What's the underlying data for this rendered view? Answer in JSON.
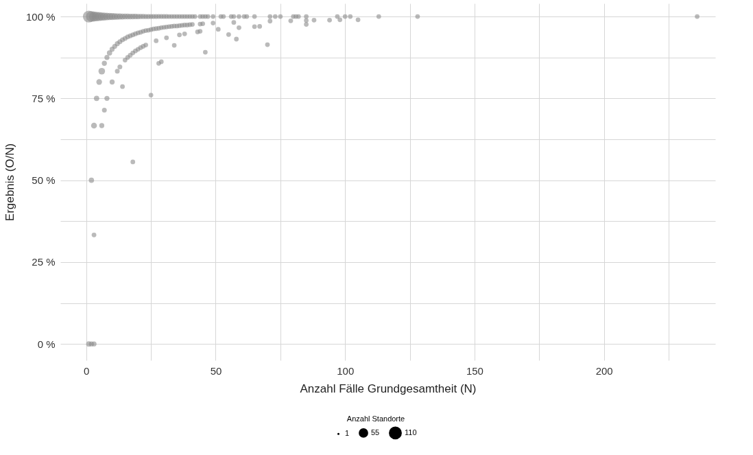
{
  "chart_data": {
    "type": "bubble",
    "xlabel": "Anzahl Fälle Grundgesamtheit (N)",
    "ylabel": "Ergebnis (O/N)",
    "legend_title": "Anzahl Standorte",
    "grid": true,
    "xlim": [
      -10,
      243
    ],
    "ylim": [
      -5,
      104
    ],
    "xticks": [
      0,
      {
        "value": 25,
        "label": null
      },
      50,
      {
        "value": 75,
        "label": null
      },
      100,
      {
        "value": 125,
        "label": null
      },
      150,
      {
        "value": 175,
        "label": null
      },
      200,
      {
        "value": 225,
        "label": null
      }
    ],
    "yticks": [
      {
        "value": 0,
        "label": "0 %"
      },
      {
        "value": 12.5,
        "label": null
      },
      {
        "value": 25,
        "label": "25 %"
      },
      {
        "value": 37.5,
        "label": null
      },
      {
        "value": 50,
        "label": "50 %"
      },
      {
        "value": 62.5,
        "label": null
      },
      {
        "value": 75,
        "label": "75 %"
      },
      {
        "value": 87.5,
        "label": null
      },
      {
        "value": 100,
        "label": "100 %"
      }
    ],
    "size_legend": [
      1,
      55,
      110
    ],
    "series": [
      {
        "color": "#8c8c8c",
        "x": [
          1,
          2,
          3,
          4,
          5,
          6,
          7,
          8,
          9,
          10,
          11,
          12,
          13,
          14,
          15,
          16,
          17,
          18,
          19,
          20,
          21,
          22,
          23,
          24,
          25,
          26,
          27,
          28,
          29,
          30,
          31,
          32,
          33,
          34,
          35,
          36,
          37,
          38,
          39,
          40,
          41,
          42,
          44,
          45,
          46,
          47,
          49,
          52,
          53,
          56,
          57,
          59,
          61,
          62,
          65,
          71,
          73,
          75,
          80,
          81,
          82,
          85,
          97,
          100,
          102,
          113,
          128,
          236
        ],
        "values": [
          100,
          100,
          100,
          100,
          100,
          100,
          100,
          100,
          100,
          100,
          100,
          100,
          100,
          100,
          100,
          100,
          100,
          100,
          100,
          100,
          100,
          100,
          100,
          100,
          100,
          100,
          100,
          100,
          100,
          100,
          100,
          100,
          100,
          100,
          100,
          100,
          100,
          100,
          100,
          100,
          100,
          100,
          100,
          100,
          100,
          100,
          100,
          100,
          100,
          100,
          100,
          100,
          100,
          100,
          100,
          100,
          100,
          100,
          100,
          100,
          100,
          100,
          100,
          100,
          100,
          100,
          100,
          100
        ],
        "sizes": [
          110,
          90,
          78,
          70,
          62,
          56,
          50,
          45,
          41,
          38,
          35,
          32,
          30,
          28,
          27,
          26,
          25,
          24,
          23,
          22,
          21,
          21,
          20,
          20,
          19,
          19,
          19,
          18,
          18,
          18,
          18,
          17,
          17,
          17,
          17,
          17,
          17,
          17,
          17,
          17,
          17,
          17,
          17,
          17,
          17,
          17,
          17,
          17,
          17,
          17,
          17,
          17,
          17,
          17,
          17,
          17,
          17,
          17,
          17,
          17,
          17,
          17,
          17,
          17,
          17,
          17,
          17,
          17
        ]
      },
      {
        "color": "#8c8c8c",
        "x": [
          2,
          3,
          4,
          5,
          6,
          7,
          8,
          9,
          10,
          11,
          12,
          13,
          14,
          15,
          16,
          17,
          18,
          19,
          20,
          21,
          22,
          23,
          24,
          25,
          26,
          27,
          28,
          29,
          30,
          31,
          32,
          33,
          34,
          35,
          36,
          37,
          38,
          39,
          40,
          41,
          44,
          45,
          49,
          57,
          71,
          79,
          85,
          88,
          94,
          98,
          105
        ],
        "values": [
          50,
          66.7,
          75,
          80,
          83.3,
          85.7,
          87.5,
          88.9,
          90,
          90.9,
          91.7,
          92.3,
          92.9,
          93.3,
          93.8,
          94.1,
          94.4,
          94.7,
          95,
          95.2,
          95.5,
          95.7,
          95.8,
          96,
          96.2,
          96.3,
          96.4,
          96.6,
          96.7,
          96.8,
          96.9,
          97,
          97.1,
          97.1,
          97.2,
          97.3,
          97.4,
          97.4,
          97.5,
          97.6,
          97.7,
          97.8,
          98,
          98.2,
          98.6,
          98.7,
          98.8,
          98.9,
          98.9,
          99,
          99
        ],
        "sizes": [
          22,
          27,
          22,
          25,
          34,
          20,
          20,
          22,
          20,
          19,
          19,
          19,
          18,
          18,
          18,
          18,
          18,
          18,
          17,
          17,
          17,
          17,
          17,
          17,
          17,
          17,
          17,
          17,
          17,
          17,
          17,
          17,
          17,
          17,
          17,
          17,
          17,
          17,
          17,
          17,
          17,
          17,
          17,
          17,
          17,
          17,
          17,
          17,
          17,
          17,
          17
        ]
      },
      {
        "color": "#8c8c8c",
        "x": [
          6,
          7,
          8,
          10,
          12,
          13,
          14,
          15,
          16,
          17,
          18,
          19,
          20,
          21,
          22,
          23,
          27,
          31,
          36,
          38,
          43,
          44,
          51,
          55,
          58,
          59,
          65,
          67,
          70,
          46,
          34,
          28,
          29,
          25,
          18,
          3,
          85,
          1,
          2,
          3
        ],
        "values": [
          66.7,
          71.4,
          75,
          80,
          83.3,
          84.6,
          78.6,
          86.7,
          87.5,
          88.2,
          88.9,
          89.5,
          90,
          90.5,
          90.9,
          91.3,
          92.6,
          93.5,
          94.4,
          94.7,
          95.3,
          95.5,
          96.1,
          94.5,
          93.1,
          96.6,
          96.9,
          97,
          91.4,
          89.1,
          91.2,
          85.7,
          86.2,
          76,
          55.6,
          33.3,
          97.6,
          0,
          0,
          0
        ],
        "sizes": [
          20,
          18,
          20,
          20,
          18,
          18,
          17,
          17,
          17,
          17,
          17,
          17,
          17,
          17,
          17,
          17,
          17,
          17,
          17,
          17,
          17,
          17,
          17,
          17,
          17,
          17,
          17,
          17,
          17,
          17,
          17,
          17,
          17,
          17,
          17,
          17,
          17,
          22,
          20,
          20
        ]
      }
    ]
  }
}
